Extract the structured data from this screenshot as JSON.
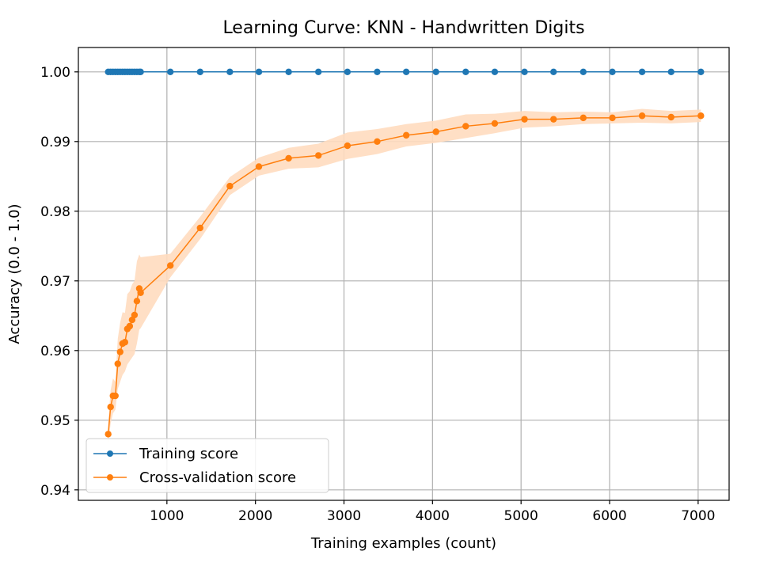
{
  "chart_data": {
    "type": "line",
    "title": "Learning Curve: KNN - Handwritten Digits",
    "xlabel": "Training examples (count)",
    "ylabel": "Accuracy (0.0 - 1.0)",
    "xlim": [
      0,
      7350
    ],
    "ylim": [
      0.9385,
      1.0035
    ],
    "xticks": [
      1000,
      2000,
      3000,
      4000,
      5000,
      6000,
      7000
    ],
    "yticks": [
      0.94,
      0.95,
      0.96,
      0.97,
      0.98,
      0.99,
      1.0
    ],
    "xtick_labels": [
      "1000",
      "2000",
      "3000",
      "4000",
      "5000",
      "6000",
      "7000"
    ],
    "ytick_labels": [
      "0.94",
      "0.95",
      "0.96",
      "0.97",
      "0.98",
      "0.99",
      "1.00"
    ],
    "grid": true,
    "legend_position": "lower-left",
    "series": [
      {
        "name": "Training score",
        "color": "#1f77b4",
        "marker": "circle",
        "x": [
          337,
          364,
          391,
          418,
          445,
          472,
          499,
          526,
          553,
          580,
          607,
          634,
          661,
          688,
          703,
          1039,
          1375,
          1711,
          2039,
          2375,
          2711,
          3039,
          3375,
          3703,
          4039,
          4375,
          4703,
          5039,
          5367,
          5703,
          6031,
          6367,
          6695,
          7031
        ],
        "y": [
          1.0,
          1.0,
          1.0,
          1.0,
          1.0,
          1.0,
          1.0,
          1.0,
          1.0,
          1.0,
          1.0,
          1.0,
          1.0,
          1.0,
          1.0,
          1.0,
          1.0,
          1.0,
          1.0,
          1.0,
          1.0,
          1.0,
          1.0,
          1.0,
          1.0,
          1.0,
          1.0,
          1.0,
          1.0,
          1.0,
          1.0,
          1.0,
          1.0,
          1.0
        ]
      },
      {
        "name": "Cross-validation score",
        "color": "#ff7f0e",
        "marker": "circle",
        "band_color": "#ffdcbf",
        "x": [
          337,
          364,
          391,
          418,
          445,
          472,
          499,
          526,
          553,
          580,
          607,
          634,
          661,
          688,
          703,
          1039,
          1375,
          1711,
          2039,
          2375,
          2711,
          3039,
          3375,
          3703,
          4039,
          4375,
          4703,
          5039,
          5367,
          5703,
          6031,
          6367,
          6695,
          7031
        ],
        "y": [
          0.948,
          0.9519,
          0.9535,
          0.9535,
          0.9581,
          0.9598,
          0.961,
          0.9612,
          0.9631,
          0.9635,
          0.9644,
          0.9651,
          0.9671,
          0.9689,
          0.9683,
          0.9722,
          0.9776,
          0.9836,
          0.9864,
          0.9876,
          0.988,
          0.9894,
          0.99,
          0.9909,
          0.9914,
          0.9922,
          0.9926,
          0.9932,
          0.9932,
          0.9934,
          0.9934,
          0.9937,
          0.9935,
          0.9937
        ],
        "band_low": [
          0.9465,
          0.9495,
          0.951,
          0.9515,
          0.9545,
          0.9555,
          0.9565,
          0.957,
          0.958,
          0.9585,
          0.959,
          0.9595,
          0.961,
          0.963,
          0.9632,
          0.9705,
          0.976,
          0.9823,
          0.9851,
          0.9861,
          0.9863,
          0.9875,
          0.9882,
          0.9893,
          0.9898,
          0.9905,
          0.9912,
          0.992,
          0.9922,
          0.9925,
          0.9926,
          0.9927,
          0.9926,
          0.9928
        ],
        "band_high": [
          0.9495,
          0.9543,
          0.956,
          0.9555,
          0.9617,
          0.964,
          0.9655,
          0.9654,
          0.9681,
          0.9685,
          0.9695,
          0.97,
          0.9728,
          0.9738,
          0.9734,
          0.9739,
          0.9792,
          0.9849,
          0.9877,
          0.9891,
          0.9897,
          0.9913,
          0.9918,
          0.9925,
          0.993,
          0.9939,
          0.994,
          0.9944,
          0.9942,
          0.9943,
          0.9942,
          0.9947,
          0.9944,
          0.9946
        ]
      }
    ]
  }
}
